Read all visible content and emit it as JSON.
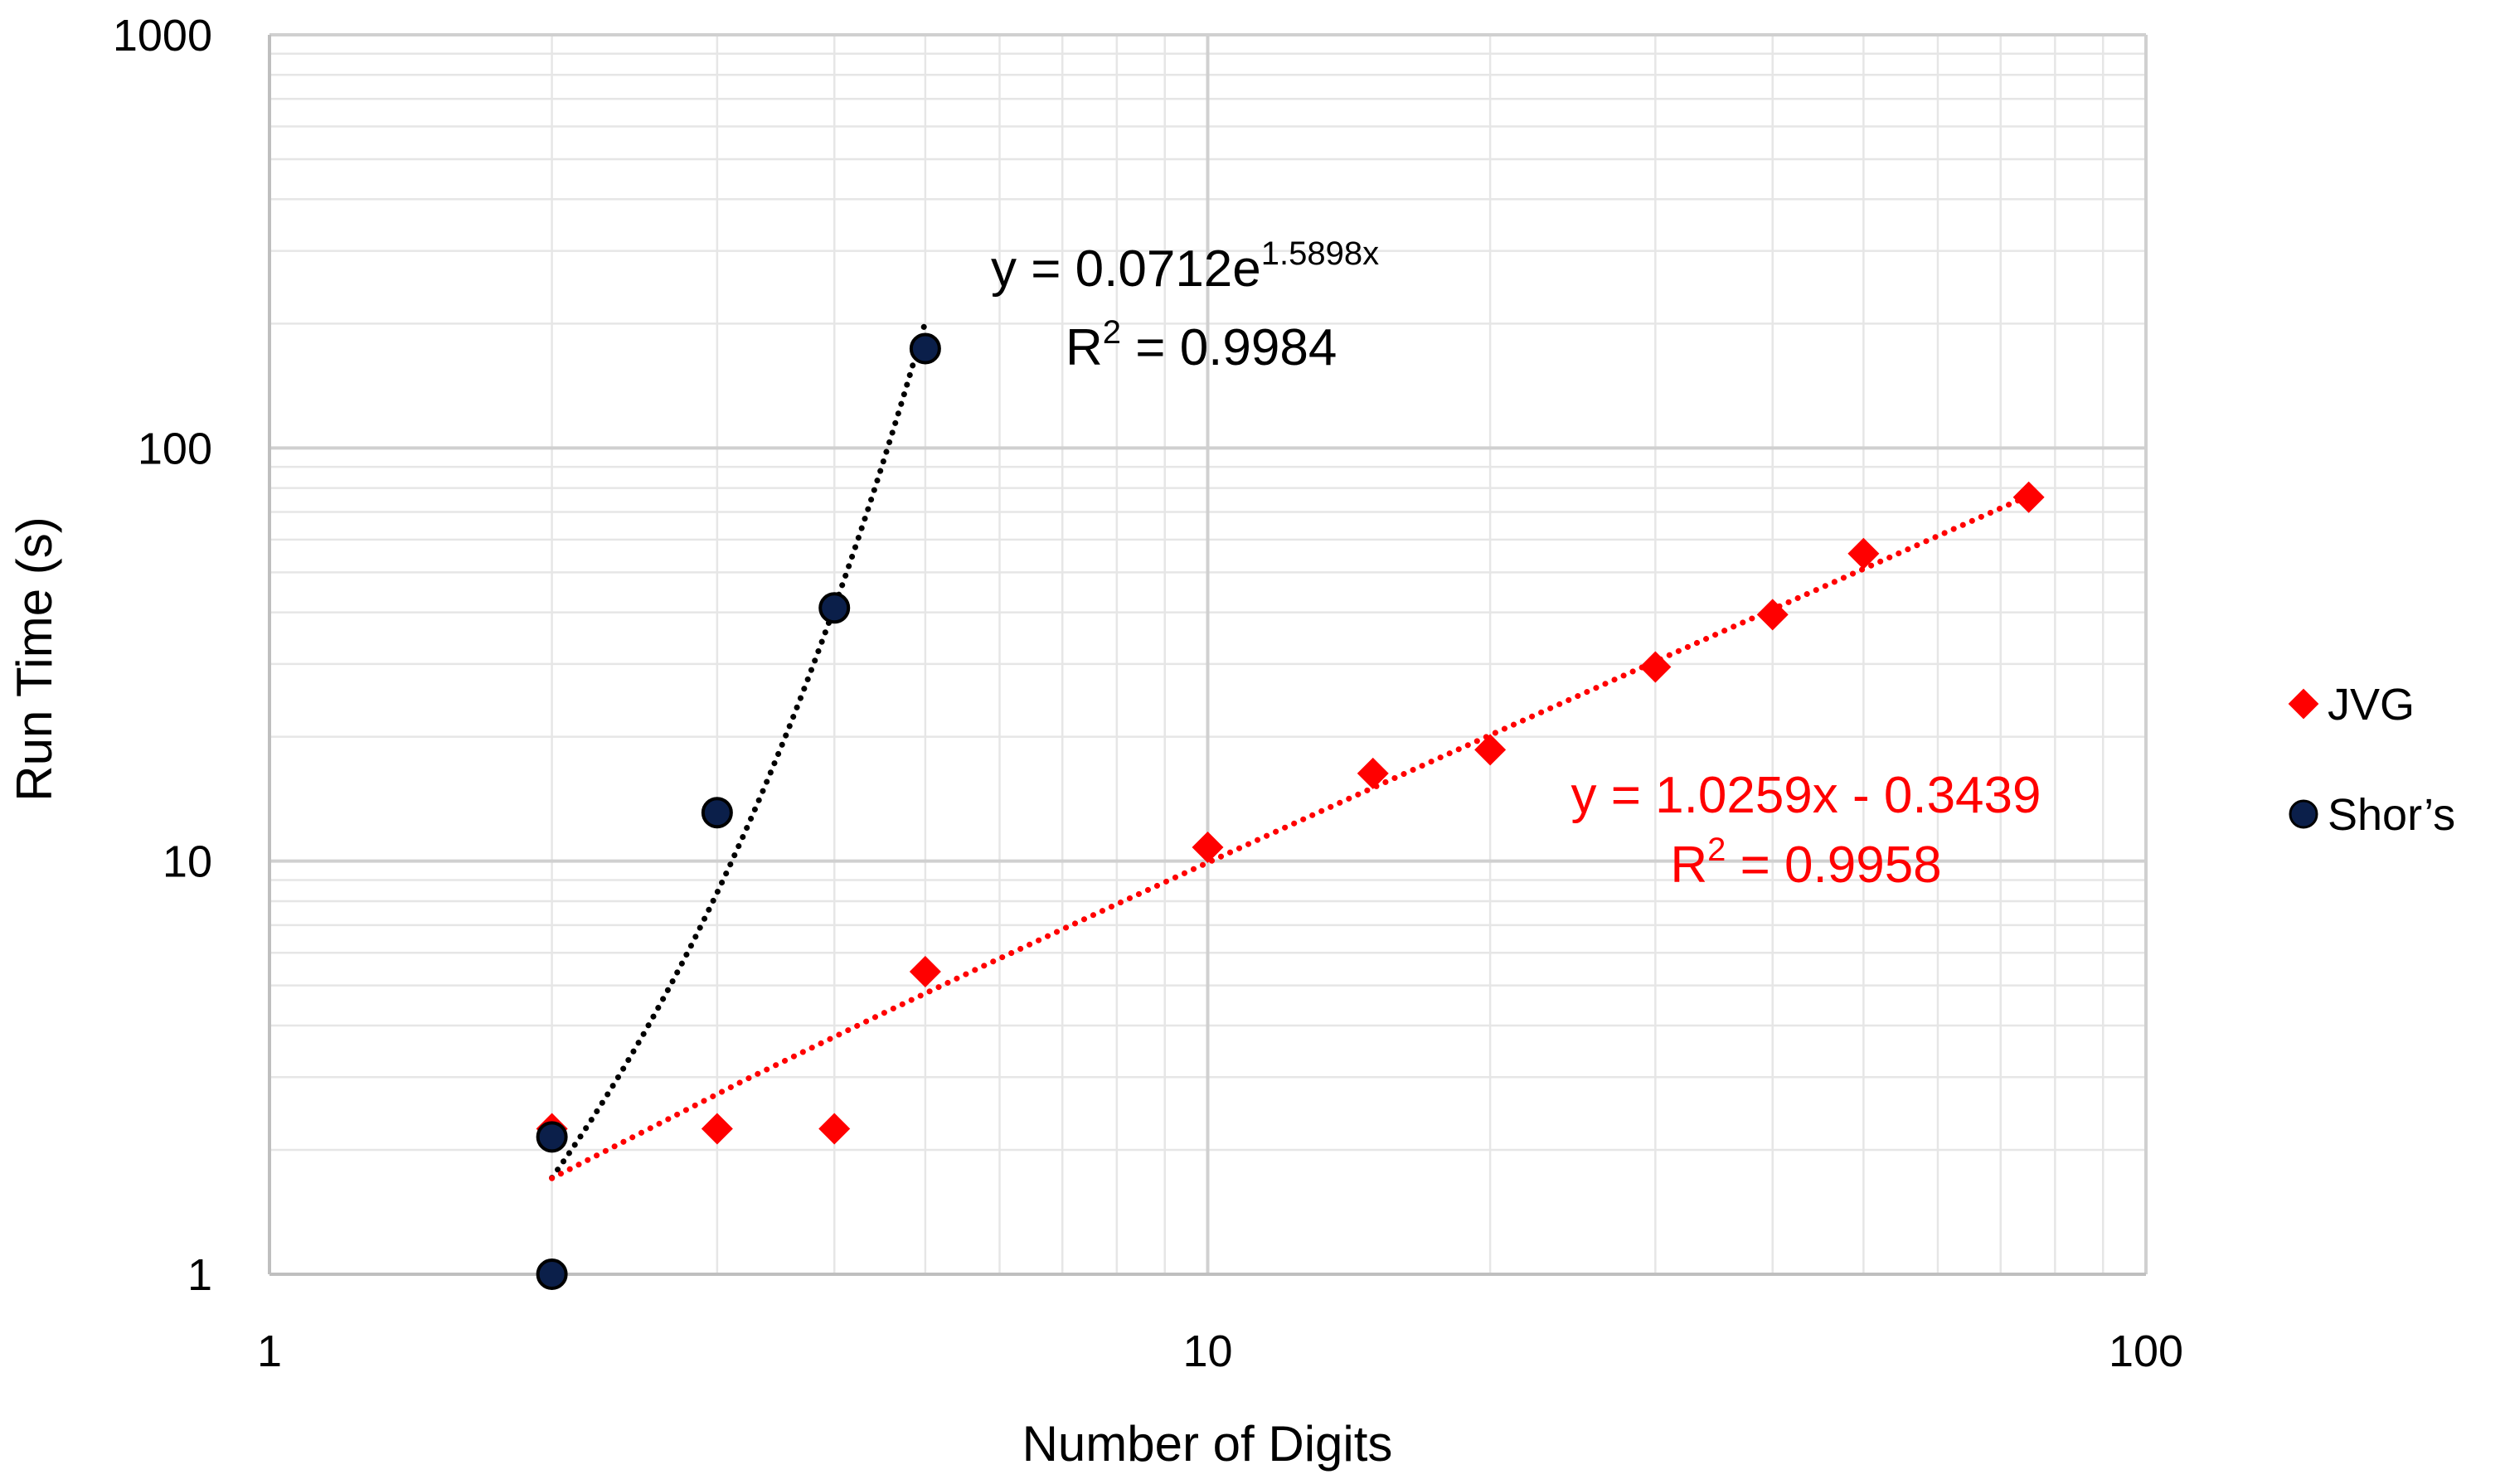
{
  "chart_data": {
    "type": "scatter",
    "xscale": "log",
    "yscale": "log",
    "xlim": [
      1,
      100
    ],
    "ylim": [
      1,
      1000
    ],
    "xlabel": "Number of Digits",
    "ylabel": "Run Time (s)",
    "x_ticks": [
      "1",
      "10",
      "100"
    ],
    "y_ticks": [
      "1",
      "10",
      "100",
      "1000"
    ],
    "grid": true,
    "legend_position": "right",
    "series": [
      {
        "name": "JVG",
        "marker": "diamond",
        "color": "#ff0000",
        "x": [
          2,
          3,
          4,
          5,
          10,
          15,
          20,
          30,
          40,
          50,
          75
        ],
        "y": [
          2.25,
          2.25,
          2.25,
          5.4,
          10.8,
          16.3,
          18.6,
          29.5,
          39.5,
          55.5,
          76
        ]
      },
      {
        "name": "Shor’s",
        "marker": "circle",
        "color": "#0b1f4a",
        "x": [
          2,
          2,
          3,
          4,
          5
        ],
        "y": [
          1,
          2.15,
          13.1,
          41,
          174
        ]
      }
    ],
    "trendlines": [
      {
        "series": "Shor’s",
        "type": "exponential",
        "color": "#000000",
        "a": 0.0712,
        "b": 1.5898,
        "x_range": [
          2,
          5
        ],
        "equation_main": "y = 0.0712e",
        "equation_exp": "1.5898x",
        "r2_prefix": "R",
        "r2_sup": "2",
        "r2_suffix": " = 0.9984"
      },
      {
        "series": "JVG",
        "type": "linear",
        "color": "#ff0000",
        "slope": 1.0259,
        "intercept": -0.3439,
        "x_range": [
          2,
          75
        ],
        "equation_main": "y = 1.0259x - 0.3439",
        "r2_prefix": "R",
        "r2_sup": "2",
        "r2_suffix": " = 0.9958"
      }
    ]
  }
}
